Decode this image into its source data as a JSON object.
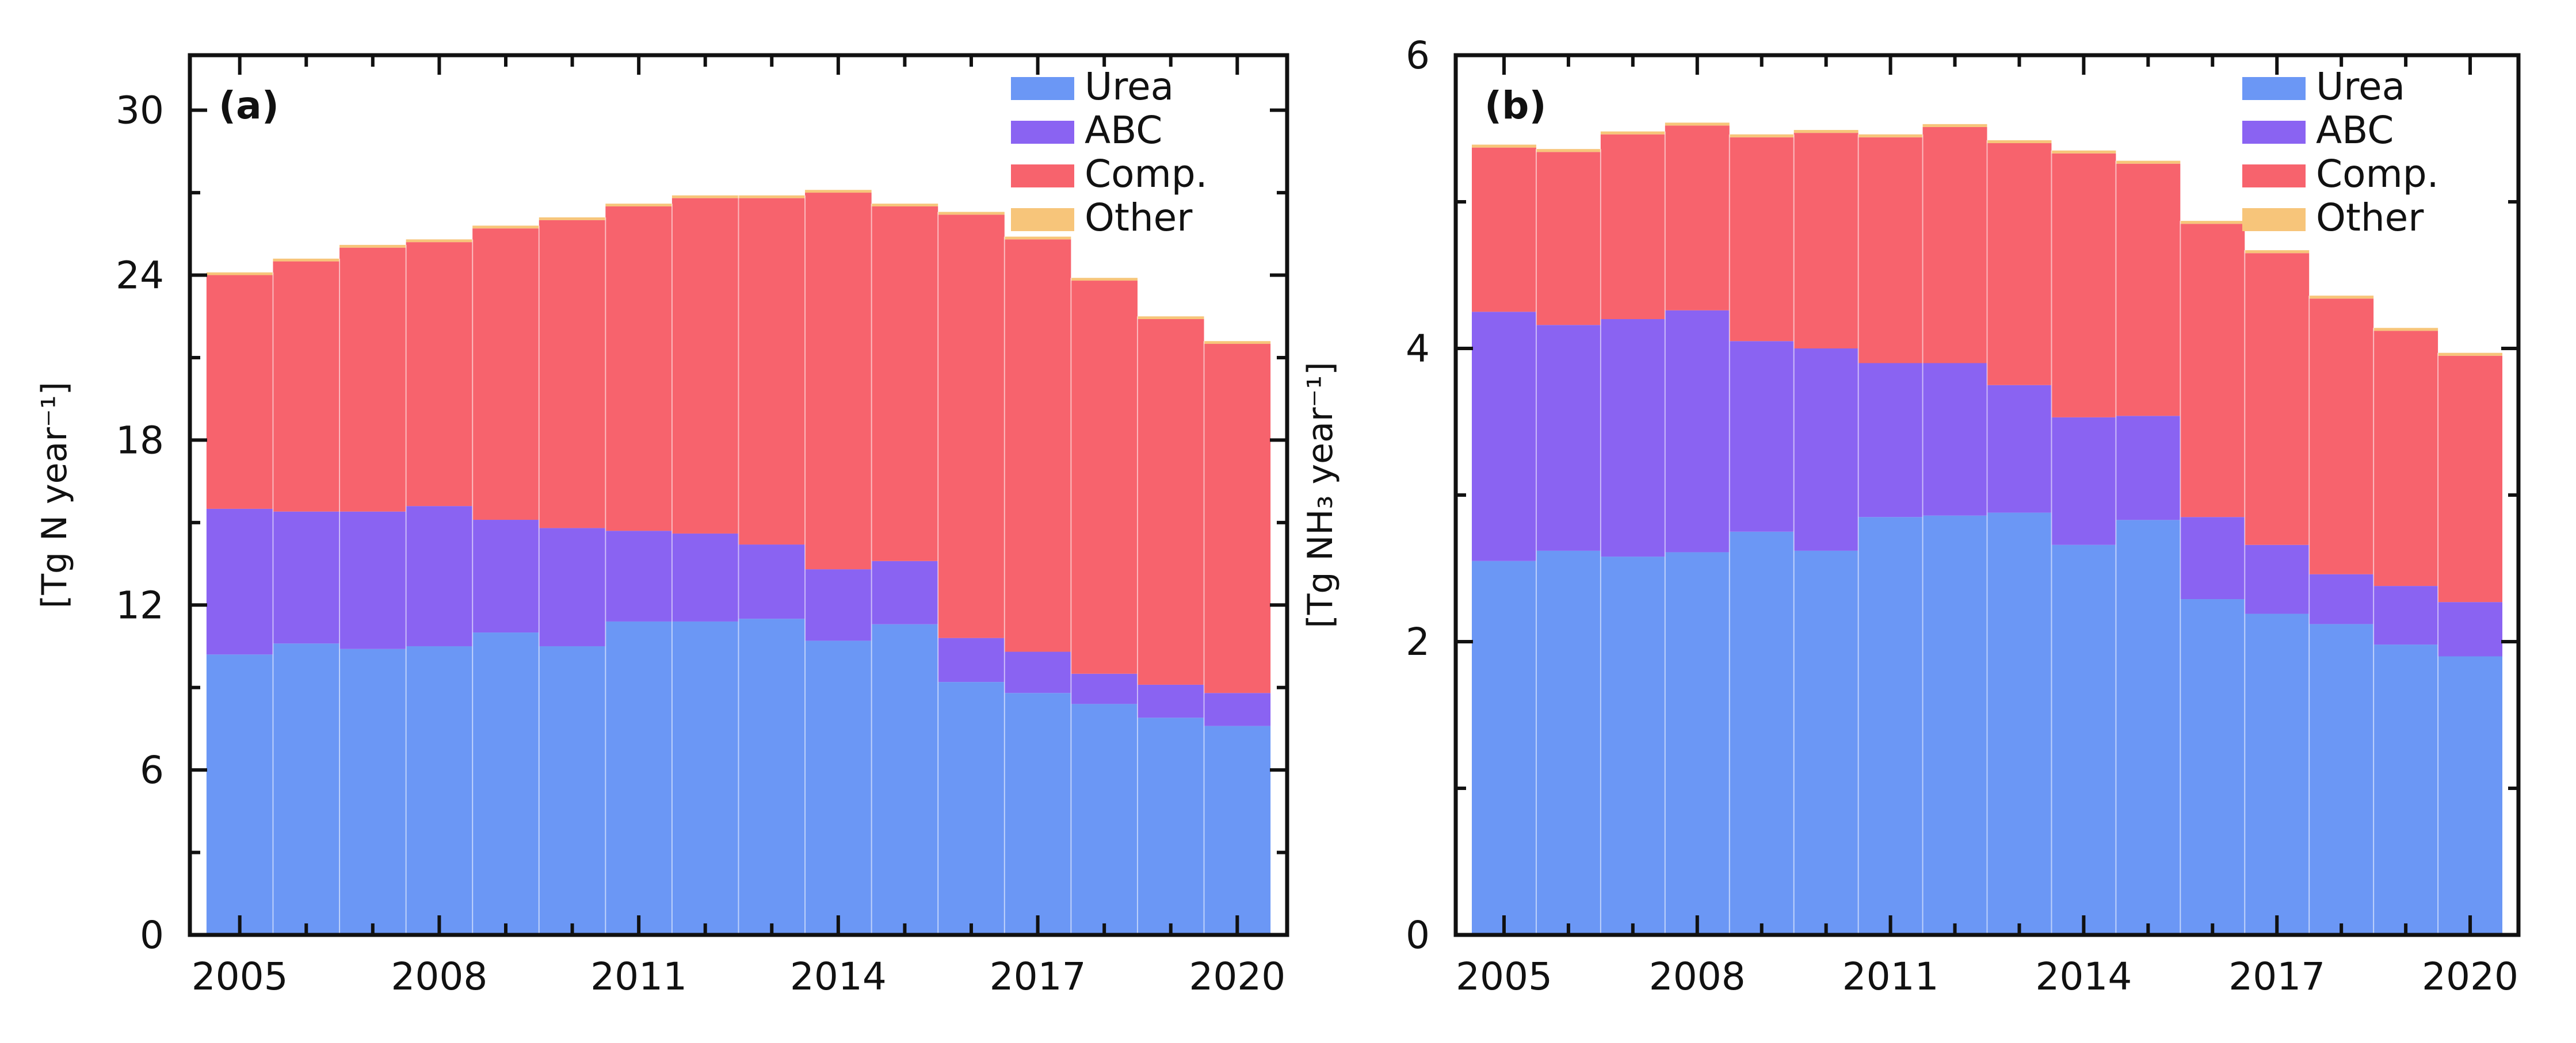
{
  "colors": {
    "Urea": "#6b97f5",
    "ABC": "#8a63f2",
    "Comp.": "#f7636d",
    "Other": "#f7c57a",
    "axis": "#111111"
  },
  "chart_data": [
    {
      "type": "bar",
      "stacked": true,
      "panel_label": "(a)",
      "ylabel": "[Tg N year⁻¹]",
      "ylim": [
        0,
        32
      ],
      "yticks": [
        0,
        6,
        12,
        18,
        24,
        30
      ],
      "years": [
        2005,
        2006,
        2007,
        2008,
        2009,
        2010,
        2011,
        2012,
        2013,
        2014,
        2015,
        2016,
        2017,
        2018,
        2019,
        2020
      ],
      "xticks": [
        2005,
        2008,
        2011,
        2014,
        2017,
        2020
      ],
      "legend_position": "top-right",
      "series": [
        {
          "name": "Urea",
          "values": [
            10.2,
            10.6,
            10.4,
            10.5,
            11.0,
            10.5,
            11.4,
            11.4,
            11.5,
            10.7,
            11.3,
            9.2,
            8.8,
            8.4,
            7.9,
            7.6
          ]
        },
        {
          "name": "ABC",
          "values": [
            5.3,
            4.8,
            5.0,
            5.1,
            4.1,
            4.3,
            3.3,
            3.2,
            2.7,
            2.6,
            2.3,
            1.6,
            1.5,
            1.1,
            1.2,
            1.2
          ]
        },
        {
          "name": "Comp.",
          "values": [
            8.5,
            9.1,
            9.6,
            9.6,
            10.6,
            11.2,
            11.8,
            12.2,
            12.6,
            13.7,
            12.9,
            15.4,
            15.0,
            14.3,
            13.3,
            12.7
          ]
        },
        {
          "name": "Other",
          "values": [
            0.1,
            0.1,
            0.1,
            0.1,
            0.1,
            0.1,
            0.1,
            0.1,
            0.1,
            0.1,
            0.1,
            0.1,
            0.1,
            0.1,
            0.1,
            0.1
          ]
        }
      ]
    },
    {
      "type": "bar",
      "stacked": true,
      "panel_label": "(b)",
      "ylabel": "[Tg NH₃ year⁻¹]",
      "ylim": [
        0,
        6
      ],
      "yticks": [
        0,
        2,
        4,
        6
      ],
      "years": [
        2005,
        2006,
        2007,
        2008,
        2009,
        2010,
        2011,
        2012,
        2013,
        2014,
        2015,
        2016,
        2017,
        2018,
        2019,
        2020
      ],
      "xticks": [
        2005,
        2008,
        2011,
        2014,
        2017,
        2020
      ],
      "legend_position": "top-right",
      "series": [
        {
          "name": "Urea",
          "values": [
            2.55,
            2.62,
            2.58,
            2.61,
            2.75,
            2.62,
            2.85,
            2.86,
            2.88,
            2.66,
            2.83,
            2.29,
            2.19,
            2.12,
            1.98,
            1.9
          ]
        },
        {
          "name": "ABC",
          "values": [
            1.7,
            1.54,
            1.62,
            1.65,
            1.3,
            1.38,
            1.05,
            1.04,
            0.87,
            0.87,
            0.71,
            0.56,
            0.47,
            0.34,
            0.4,
            0.37
          ]
        },
        {
          "name": "Comp.",
          "values": [
            1.12,
            1.18,
            1.26,
            1.26,
            1.39,
            1.47,
            1.54,
            1.61,
            1.65,
            1.8,
            1.72,
            2.0,
            1.99,
            1.88,
            1.74,
            1.68
          ]
        },
        {
          "name": "Other",
          "values": [
            0.02,
            0.02,
            0.02,
            0.02,
            0.02,
            0.02,
            0.02,
            0.02,
            0.02,
            0.02,
            0.02,
            0.02,
            0.02,
            0.02,
            0.02,
            0.02
          ]
        }
      ]
    }
  ]
}
